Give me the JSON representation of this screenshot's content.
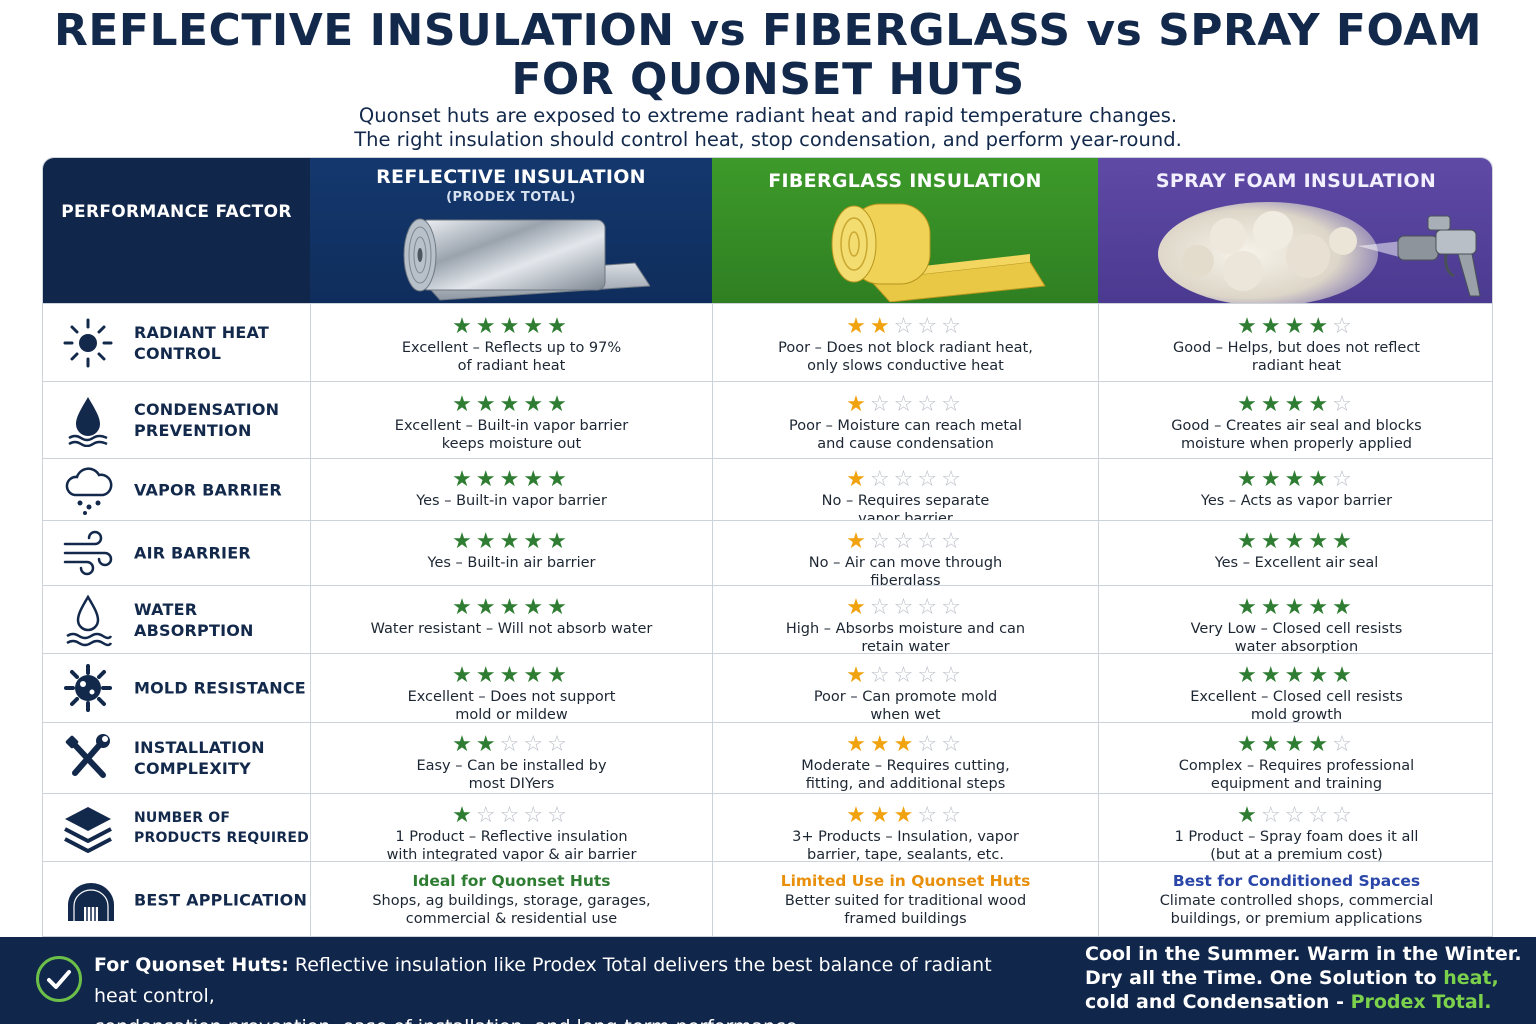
{
  "title_line1": "REFLECTIVE INSULATION vs FIBERGLASS vs SPRAY FOAM",
  "title_line2": "FOR QUONSET HUTS",
  "subtitle_line1": "Quonset huts are exposed to extreme radiant heat and rapid temperature changes.",
  "subtitle_line2": "The right insulation should control heat, stop condensation, and perform year-round.",
  "header": {
    "factor": "PERFORMANCE FACTOR",
    "reflective": "REFLECTIVE INSULATION",
    "reflective_sub": "(PRODEX TOTAL)",
    "fiberglass": "FIBERGLASS INSULATION",
    "spray": "SPRAY FOAM INSULATION"
  },
  "colors": {
    "navy": "#10264a",
    "reflective_header": "#14386e",
    "fiberglass_header": "#3d9a2a",
    "spray_header": "#5f4aa6",
    "star_green": "#2e7d32",
    "star_orange": "#f0a20f",
    "apply_green": "#2e7d32",
    "apply_orange": "#e8900c",
    "apply_blue": "#2a46a8"
  },
  "rows": [
    {
      "factor": "RADIANT HEAT CONTROL",
      "icon": "sun-icon",
      "reflective": {
        "rating": 5,
        "text1": "Excellent – Reflects up to 97%",
        "text2": "of radiant heat"
      },
      "fiberglass": {
        "rating": 2,
        "text1": "Poor – Does not block radiant heat,",
        "text2": "only slows conductive heat"
      },
      "spray": {
        "rating": 4,
        "text1": "Good – Helps, but does not reflect",
        "text2": "radiant heat"
      }
    },
    {
      "factor": "CONDENSATION PREVENTION",
      "icon": "water-drop-icon",
      "reflective": {
        "rating": 5,
        "text1": "Excellent – Built-in vapor barrier",
        "text2": "keeps moisture out"
      },
      "fiberglass": {
        "rating": 1,
        "text1": "Poor – Moisture can reach metal",
        "text2": "and cause condensation"
      },
      "spray": {
        "rating": 4,
        "text1": "Good – Creates air seal and blocks",
        "text2": "moisture when properly applied"
      }
    },
    {
      "factor": "VAPOR BARRIER",
      "icon": "rain-cloud-icon",
      "reflective": {
        "rating": 5,
        "text1": "Yes – Built-in vapor barrier",
        "text2": ""
      },
      "fiberglass": {
        "rating": 1,
        "text1": "No – Requires separate",
        "text2": "vapor barrier"
      },
      "spray": {
        "rating": 4,
        "text1": "Yes – Acts as vapor barrier",
        "text2": ""
      }
    },
    {
      "factor": "AIR BARRIER",
      "icon": "wind-icon",
      "reflective": {
        "rating": 5,
        "text1": "Yes – Built-in air barrier",
        "text2": ""
      },
      "fiberglass": {
        "rating": 1,
        "text1": "No – Air can move through",
        "text2": "fiberglass"
      },
      "spray": {
        "rating": 5,
        "text1": "Yes – Excellent air seal",
        "text2": ""
      }
    },
    {
      "factor": "WATER ABSORPTION",
      "icon": "drop-waves-icon",
      "reflective": {
        "rating": 5,
        "text1": "Water resistant – Will not absorb water",
        "text2": ""
      },
      "fiberglass": {
        "rating": 1,
        "text1": "High – Absorbs moisture and can",
        "text2": "retain water"
      },
      "spray": {
        "rating": 5,
        "text1": "Very Low – Closed cell resists",
        "text2": "water absorption"
      }
    },
    {
      "factor": "MOLD RESISTANCE",
      "icon": "mold-spore-icon",
      "reflective": {
        "rating": 5,
        "text1": "Excellent – Does not support",
        "text2": "mold or mildew"
      },
      "fiberglass": {
        "rating": 1,
        "text1": "Poor – Can promote mold",
        "text2": "when wet"
      },
      "spray": {
        "rating": 5,
        "text1": "Excellent – Closed cell resists",
        "text2": "mold growth"
      }
    },
    {
      "factor": "INSTALLATION COMPLEXITY",
      "icon": "tools-icon",
      "reflective": {
        "rating": 2,
        "text1": "Easy – Can be installed by",
        "text2": "most DIYers"
      },
      "fiberglass": {
        "rating": 3,
        "text1": "Moderate – Requires cutting,",
        "text2": "fitting, and additional steps"
      },
      "spray": {
        "rating": 4,
        "text1": "Complex – Requires professional",
        "text2": "equipment and training"
      }
    },
    {
      "factor": "NUMBER OF PRODUCTS REQUIRED",
      "icon": "layers-icon",
      "reflective": {
        "rating": 1,
        "text1": "1 Product – Reflective insulation",
        "text2": "with integrated vapor & air barrier"
      },
      "fiberglass": {
        "rating": 3,
        "text1": "3+ Products – Insulation, vapor",
        "text2": "barrier, tape, sealants, etc."
      },
      "spray": {
        "rating": 1,
        "text1": "1 Product – Spray foam does it all",
        "text2": "(but at a premium cost)"
      }
    }
  ],
  "best": {
    "factor": "BEST APPLICATION",
    "icon": "quonset-hut-icon",
    "reflective": {
      "head": "Ideal for Quonset Huts",
      "text1": "Shops, ag buildings, storage, garages,",
      "text2": "commercial & residential use"
    },
    "fiberglass": {
      "head": "Limited Use in Quonset Huts",
      "text1": "Better suited for traditional wood",
      "text2": "framed buildings"
    },
    "spray": {
      "head": "Best for Conditioned Spaces",
      "text1": "Climate controlled shops, commercial",
      "text2": "buildings, or premium applications"
    }
  },
  "footer": {
    "lead": "For Quonset Huts:",
    "text_line1": " Reflective insulation like Prodex Total delivers the best balance of radiant heat control,",
    "text_line2": "condensation prevention, ease of installation, and long-term  performance.",
    "right_line1": "Cool in the Summer. Warm in the Winter.",
    "right_line2a": "Dry all the Time. One Solution to ",
    "right_line2b": "heat,",
    "right_line3a": "cold and Condensation - ",
    "right_line3b": "Prodex Total."
  }
}
